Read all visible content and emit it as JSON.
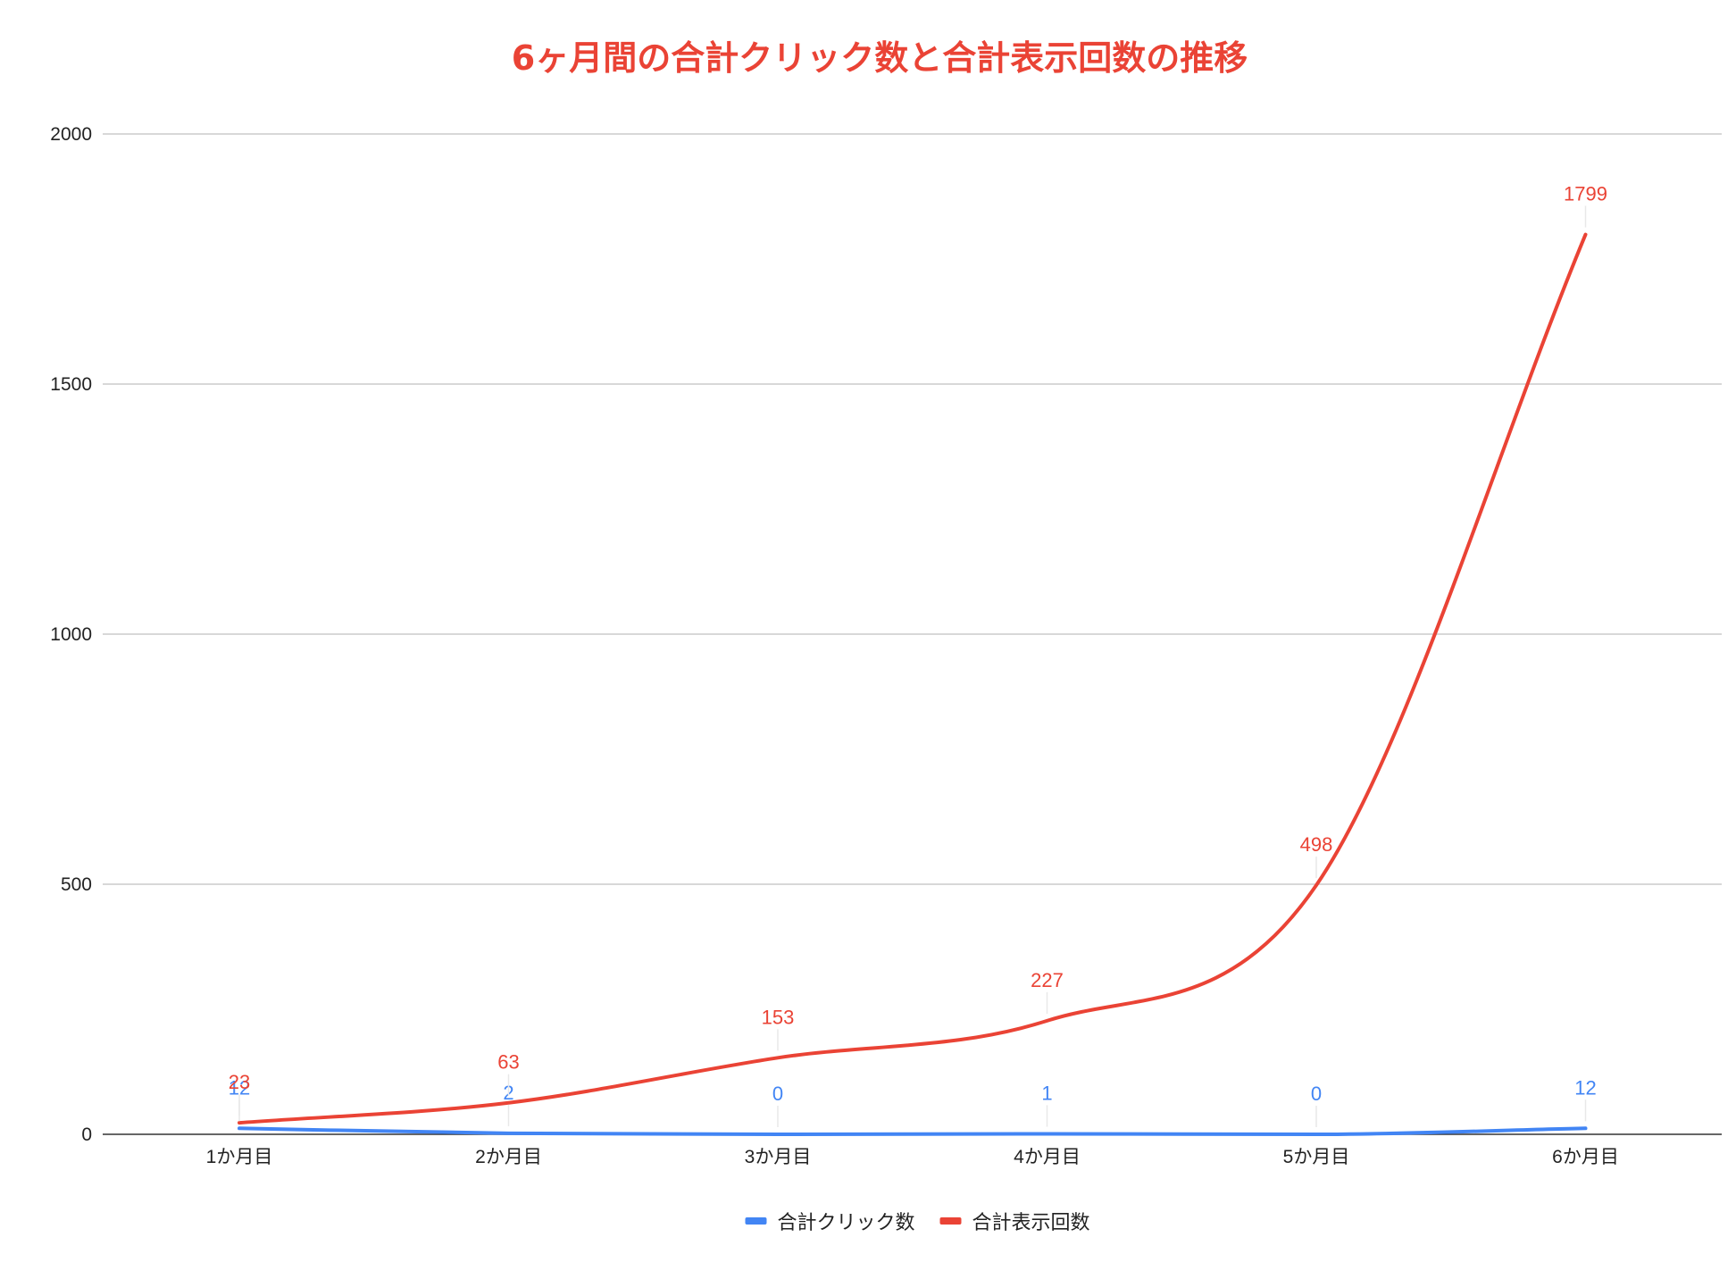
{
  "chart_data": {
    "type": "line",
    "title": "6ヶ月間の合計クリック数と合計表示回数の推移",
    "xlabel": "",
    "ylabel": "",
    "categories": [
      "1か月目",
      "2か月目",
      "3か月目",
      "4か月目",
      "5か月目",
      "6か月目"
    ],
    "series": [
      {
        "name": "合計クリック数",
        "values": [
          12,
          2,
          0,
          1,
          0,
          12
        ],
        "color": "#4285f4"
      },
      {
        "name": "合計表示回数",
        "values": [
          23,
          63,
          153,
          227,
          498,
          1799
        ],
        "color": "#ea4335"
      }
    ],
    "ylim": [
      0,
      2000
    ],
    "yticks": [
      0,
      500,
      1000,
      1500,
      2000
    ],
    "ytick_labels": [
      "0",
      "500",
      "1000",
      "1500",
      "2000"
    ],
    "grid": true,
    "legend_position": "bottom",
    "smooth": true,
    "data_labels": true,
    "title_color": "#ea4335"
  }
}
